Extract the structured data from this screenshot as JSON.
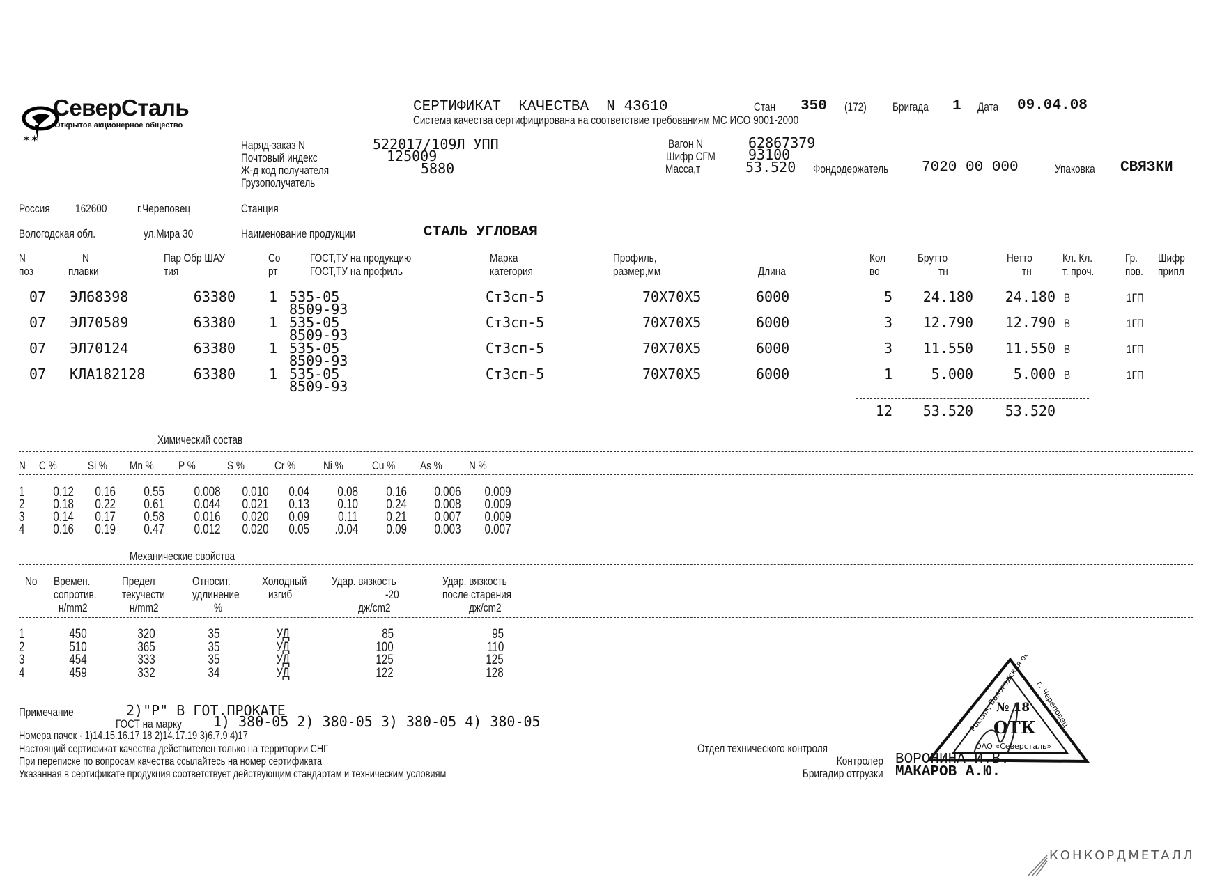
{
  "logo": {
    "brand": "СеверСталь",
    "subtitle": "Открытое акционерное общество"
  },
  "header": {
    "title": "СЕРТИФИКАТ  КАЧЕСТВА  N 43610",
    "stan_label": "Стан",
    "stan_value": "350",
    "stan_extra": "(172)",
    "brigade_label": "Бригада",
    "brigade_value": "1",
    "date_label": "Дата",
    "date_value": "09.04.08",
    "subtitle": "Система качества сертифицирована на соответствие требованиям МС ИСО 9001-2000"
  },
  "order": {
    "order_label": "Наряд-заказ N",
    "order_value": "522017/109Л УПП",
    "postcode_label": "Почтовый индекс",
    "postcode_value": "125009",
    "rail_code_label": "Ж-д код получателя",
    "rail_code_value": "5880",
    "consignee_label": "Грузополучатель",
    "wagon_label": "Вагон N",
    "wagon_value": "62867379",
    "sgm_label": "Шифр СГМ",
    "sgm_value": "93100",
    "mass_label": "Масса,т",
    "mass_value": "53.520",
    "fund_label": "Фондодержатель",
    "fund_value": "7020 00 000",
    "pack_label": "Упаковка",
    "pack_value": "СВЯЗКИ"
  },
  "address": {
    "country": "Россия",
    "zip": "162600",
    "city": "г.Череповец",
    "station": "Станция",
    "region": "Вологодская обл.",
    "street": "ул.Мира 30",
    "product_label": "Наименование продукции",
    "product_value": "СТАЛЬ УГЛОВАЯ"
  },
  "main_table": {
    "headers": {
      "poz1": "N",
      "poz2": "поз",
      "melt1": "N",
      "melt2": "плавки",
      "party1": "Пар Обр ШАУ",
      "party2": "тия",
      "sort1": "Со",
      "sort2": "рт",
      "gost1": "ГОСТ,ТУ на продукцию",
      "gost2": "ГОСТ,ТУ на профиль",
      "grade1": "Марка",
      "grade2": "категория",
      "profile1": "Профиль,",
      "profile2": "размер,мм",
      "length": "Длина",
      "qty1": "Кол",
      "qty2": "во",
      "gross1": "Брутто",
      "gross2": "тн",
      "net1": "Нетто",
      "net2": "тн",
      "cl1": "Кл. Кл.",
      "cl2": "т. проч.",
      "gr1": "Гр.",
      "gr2": "пов.",
      "code1": "Шифр",
      "code2": "припл"
    },
    "rows": [
      {
        "poz": "07",
        "melt": "ЭЛ68398",
        "party": "63380",
        "sort": "1",
        "gost_product": "535-05",
        "gost_profile": "8509-93",
        "grade": "Ст3сп-5",
        "profile": "70X70X5",
        "length": "6000",
        "qty": "5",
        "gross": "24.180",
        "net": "24.180",
        "cl_t": "В",
        "gr": "1ГП"
      },
      {
        "poz": "07",
        "melt": "ЭЛ70589",
        "party": "63380",
        "sort": "1",
        "gost_product": "535-05",
        "gost_profile": "8509-93",
        "grade": "Ст3сп-5",
        "profile": "70X70X5",
        "length": "6000",
        "qty": "3",
        "gross": "12.790",
        "net": "12.790",
        "cl_t": "В",
        "gr": "1ГП"
      },
      {
        "poz": "07",
        "melt": "ЭЛ70124",
        "party": "63380",
        "sort": "1",
        "gost_product": "535-05",
        "gost_profile": "8509-93",
        "grade": "Ст3сп-5",
        "profile": "70X70X5",
        "length": "6000",
        "qty": "3",
        "gross": "11.550",
        "net": "11.550",
        "cl_t": "В",
        "gr": "1ГП"
      },
      {
        "poz": "07",
        "melt": "КЛА182128",
        "party": "63380",
        "sort": "1",
        "gost_product": "535-05",
        "gost_profile": "8509-93",
        "grade": "Ст3сп-5",
        "profile": "70X70X5",
        "length": "6000",
        "qty": "1",
        "gross": "5.000",
        "net": "5.000",
        "cl_t": "В",
        "gr": "1ГП"
      }
    ],
    "totals": {
      "qty": "12",
      "gross": "53.520",
      "net": "53.520"
    }
  },
  "chemistry": {
    "title": "Химический состав",
    "headers": [
      "N",
      "C %",
      "Si %",
      "Mn %",
      "P %",
      "S %",
      "Cr %",
      "Ni %",
      "Cu %",
      "As %",
      "N %"
    ],
    "rows": [
      [
        "1",
        "0.12",
        "0.16",
        "0.55",
        "0.008",
        "0.010",
        "0.04",
        "0.08",
        "0.16",
        "0.006",
        "0.009"
      ],
      [
        "2",
        "0.18",
        "0.22",
        "0.61",
        "0.044",
        "0.021",
        "0.13",
        "0.10",
        "0.24",
        "0.008",
        "0.009"
      ],
      [
        "3",
        "0.14",
        "0.17",
        "0.58",
        "0.016",
        "0.020",
        "0.09",
        "0.11",
        "0.21",
        "0.007",
        "0.009"
      ],
      [
        "4",
        "0.16",
        "0.19",
        "0.47",
        "0.012",
        "0.020",
        "0.05",
        ".0.04",
        "0.09",
        "0.003",
        "0.007"
      ]
    ]
  },
  "mechanics": {
    "title": "Механические свойства",
    "headers": {
      "no": "No",
      "tensile1": "Времен.",
      "tensile2": "сопротив.",
      "tensile3": "н/mm2",
      "yield1": "Предел",
      "yield2": "текучести",
      "yield3": "н/mm2",
      "elong1": "Относит.",
      "elong2": "удлинение",
      "elong3": "%",
      "bend1": "Холодный",
      "bend2": "изгиб",
      "impact1": "Удар. вязкость",
      "impact2": "-20",
      "impact3": "дж/cm2",
      "aged1": "Удар. вязкость",
      "aged2": "после старения",
      "aged3": "дж/cm2"
    },
    "rows": [
      [
        "1",
        "450",
        "320",
        "35",
        "УД",
        "85",
        "95"
      ],
      [
        "2",
        "510",
        "365",
        "35",
        "УД",
        "100",
        "110"
      ],
      [
        "3",
        "454",
        "333",
        "35",
        "УД",
        "125",
        "125"
      ],
      [
        "4",
        "459",
        "332",
        "34",
        "УД",
        "122",
        "128"
      ]
    ]
  },
  "notes": {
    "note_label": "Примечание",
    "note_value": "2)\"Р\" В ГОТ.ПРОКАТЕ",
    "gost_label": "ГОСТ на марку",
    "gost_value": "1) 380-05 2) 380-05 3) 380-05 4) 380-05",
    "bundles": "Номера пачек · 1)14.15.16.17.18 2)14.17.19 3)6.7.9 4)17",
    "line1": "Настоящий сертификат качества действителен только на территории СНГ",
    "line2": "При переписке по вопросам качества ссылайтесь на номер сертификата",
    "line3": "Указанная в сертификате продукция соответствует действующим стандартам и техническим условиям"
  },
  "signatures": {
    "dept": "Отдел технического контроля",
    "controller_label": "Контролер",
    "controller_value": "ВОРОНИНА И.В.",
    "foreman_label": "Бригадир отгрузки",
    "foreman_value": "МАКАРОВ А.Ю."
  },
  "stamp": {
    "left_edge": "Россия, Вологодская обл.",
    "right_edge": "г. Череповец",
    "bottom_edge": "ОАО «Северсталь»",
    "number": "№ 18",
    "dept": "ОТК"
  },
  "watermark": "КОНКОРДМЕТАЛЛ"
}
